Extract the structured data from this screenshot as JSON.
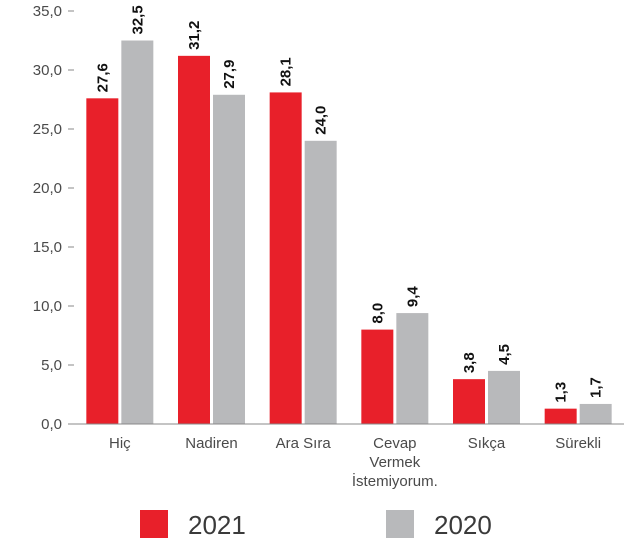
{
  "chart_data": {
    "type": "bar",
    "categories": [
      [
        "Hiç"
      ],
      [
        "Nadiren"
      ],
      [
        "Ara Sıra"
      ],
      [
        "Cevap",
        "Vermek",
        "İstemiyorum."
      ],
      [
        "Sıkça"
      ],
      [
        "Sürekli"
      ]
    ],
    "series": [
      {
        "name": "2021",
        "color": "#e8202a",
        "values": [
          27.6,
          31.2,
          28.1,
          8.0,
          3.8,
          1.3
        ],
        "labels": [
          "27,6",
          "31,2",
          "28,1",
          "8,0",
          "3,8",
          "1,3"
        ]
      },
      {
        "name": "2020",
        "color": "#b8b9bb",
        "values": [
          32.5,
          27.9,
          24.0,
          9.4,
          4.5,
          1.7
        ],
        "labels": [
          "32,5",
          "27,9",
          "24,0",
          "9,4",
          "4,5",
          "1,7"
        ]
      }
    ],
    "y_ticks": [
      "0,0",
      "5,0",
      "10,0",
      "15,0",
      "20,0",
      "25,0",
      "30,0",
      "35,0"
    ],
    "ylim": [
      0,
      35
    ],
    "grid": false,
    "legend_position": "bottom"
  }
}
